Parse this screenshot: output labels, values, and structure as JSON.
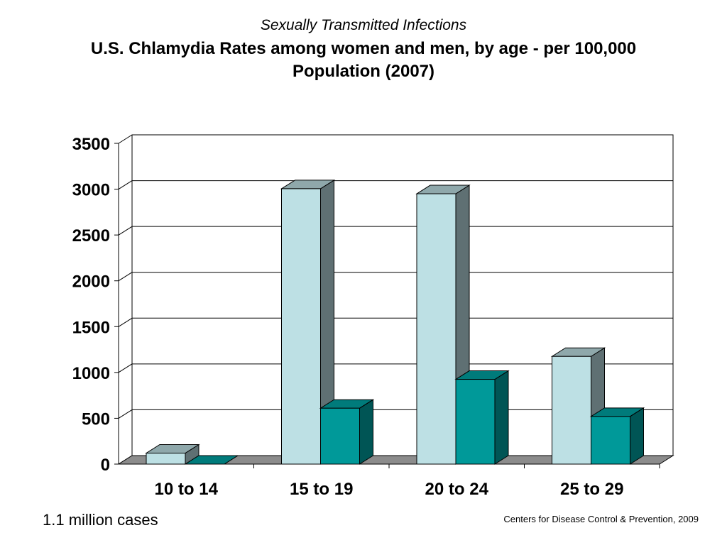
{
  "chart_data": {
    "type": "bar",
    "supertitle": "Sexually Transmitted Infections",
    "title": "U.S. Chlamydia Rates among women and men, by age - per 100,000 Population (2007)",
    "categories": [
      "10 to 14",
      "15 to 19",
      "20 to 24",
      "25 to 29"
    ],
    "series": [
      {
        "values": [
          120,
          3005,
          2950,
          1175
        ],
        "color": "#bde0e4",
        "side_color": "#5f7073",
        "top_color": "#8fa8ab"
      },
      {
        "values": [
          0,
          610,
          925,
          520
        ],
        "color": "#009999",
        "side_color": "#005555",
        "top_color": "#007b7b"
      }
    ],
    "yticks": [
      "0",
      "500",
      "1000",
      "1500",
      "2000",
      "2500",
      "3000",
      "3500"
    ],
    "ylim": [
      0,
      3500
    ],
    "grid": true,
    "legend": "none",
    "style": "3d"
  },
  "notes": {
    "cases": "1.1 million cases",
    "source": "Centers for Disease Control & Prevention, 2009"
  }
}
